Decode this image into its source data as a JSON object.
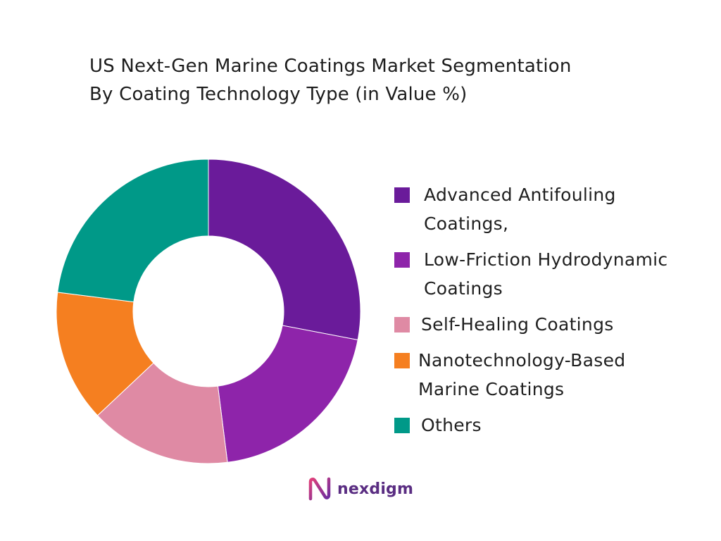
{
  "title": {
    "line1": "US Next-Gen Marine Coatings Market Segmentation",
    "line2": "By Coating Technology Type  (in Value %)"
  },
  "chart_data": {
    "type": "pie",
    "subtype": "donut",
    "title": "US Next-Gen Marine Coatings Market Segmentation By Coating Technology Type  (in Value %)",
    "categories": [
      "Advanced Antifouling Coatings,",
      "Low-Friction Hydrodynamic Coatings",
      "Self-Healing Coatings",
      "Nanotechnology-Based Marine Coatings",
      "Others"
    ],
    "values": [
      28,
      20,
      15,
      14,
      23
    ],
    "colors": [
      "#6a1b9a",
      "#8e24aa",
      "#df8aa4",
      "#f57f20",
      "#009988"
    ],
    "legend_position": "right"
  },
  "legend": [
    {
      "label": "Advanced Antifouling Coatings,",
      "color": "#6a1b9a"
    },
    {
      "label": "Low-Friction Hydrodynamic Coatings",
      "color": "#8e24aa"
    },
    {
      "label": "Self-Healing Coatings",
      "color": "#df8aa4"
    },
    {
      "label": "Nanotechnology-Based Marine Coatings",
      "color": "#f57f20"
    },
    {
      "label": "Others",
      "color": "#009988"
    }
  ],
  "brand": {
    "name": "nexdigm",
    "icon": "nexdigm-logo-icon"
  }
}
